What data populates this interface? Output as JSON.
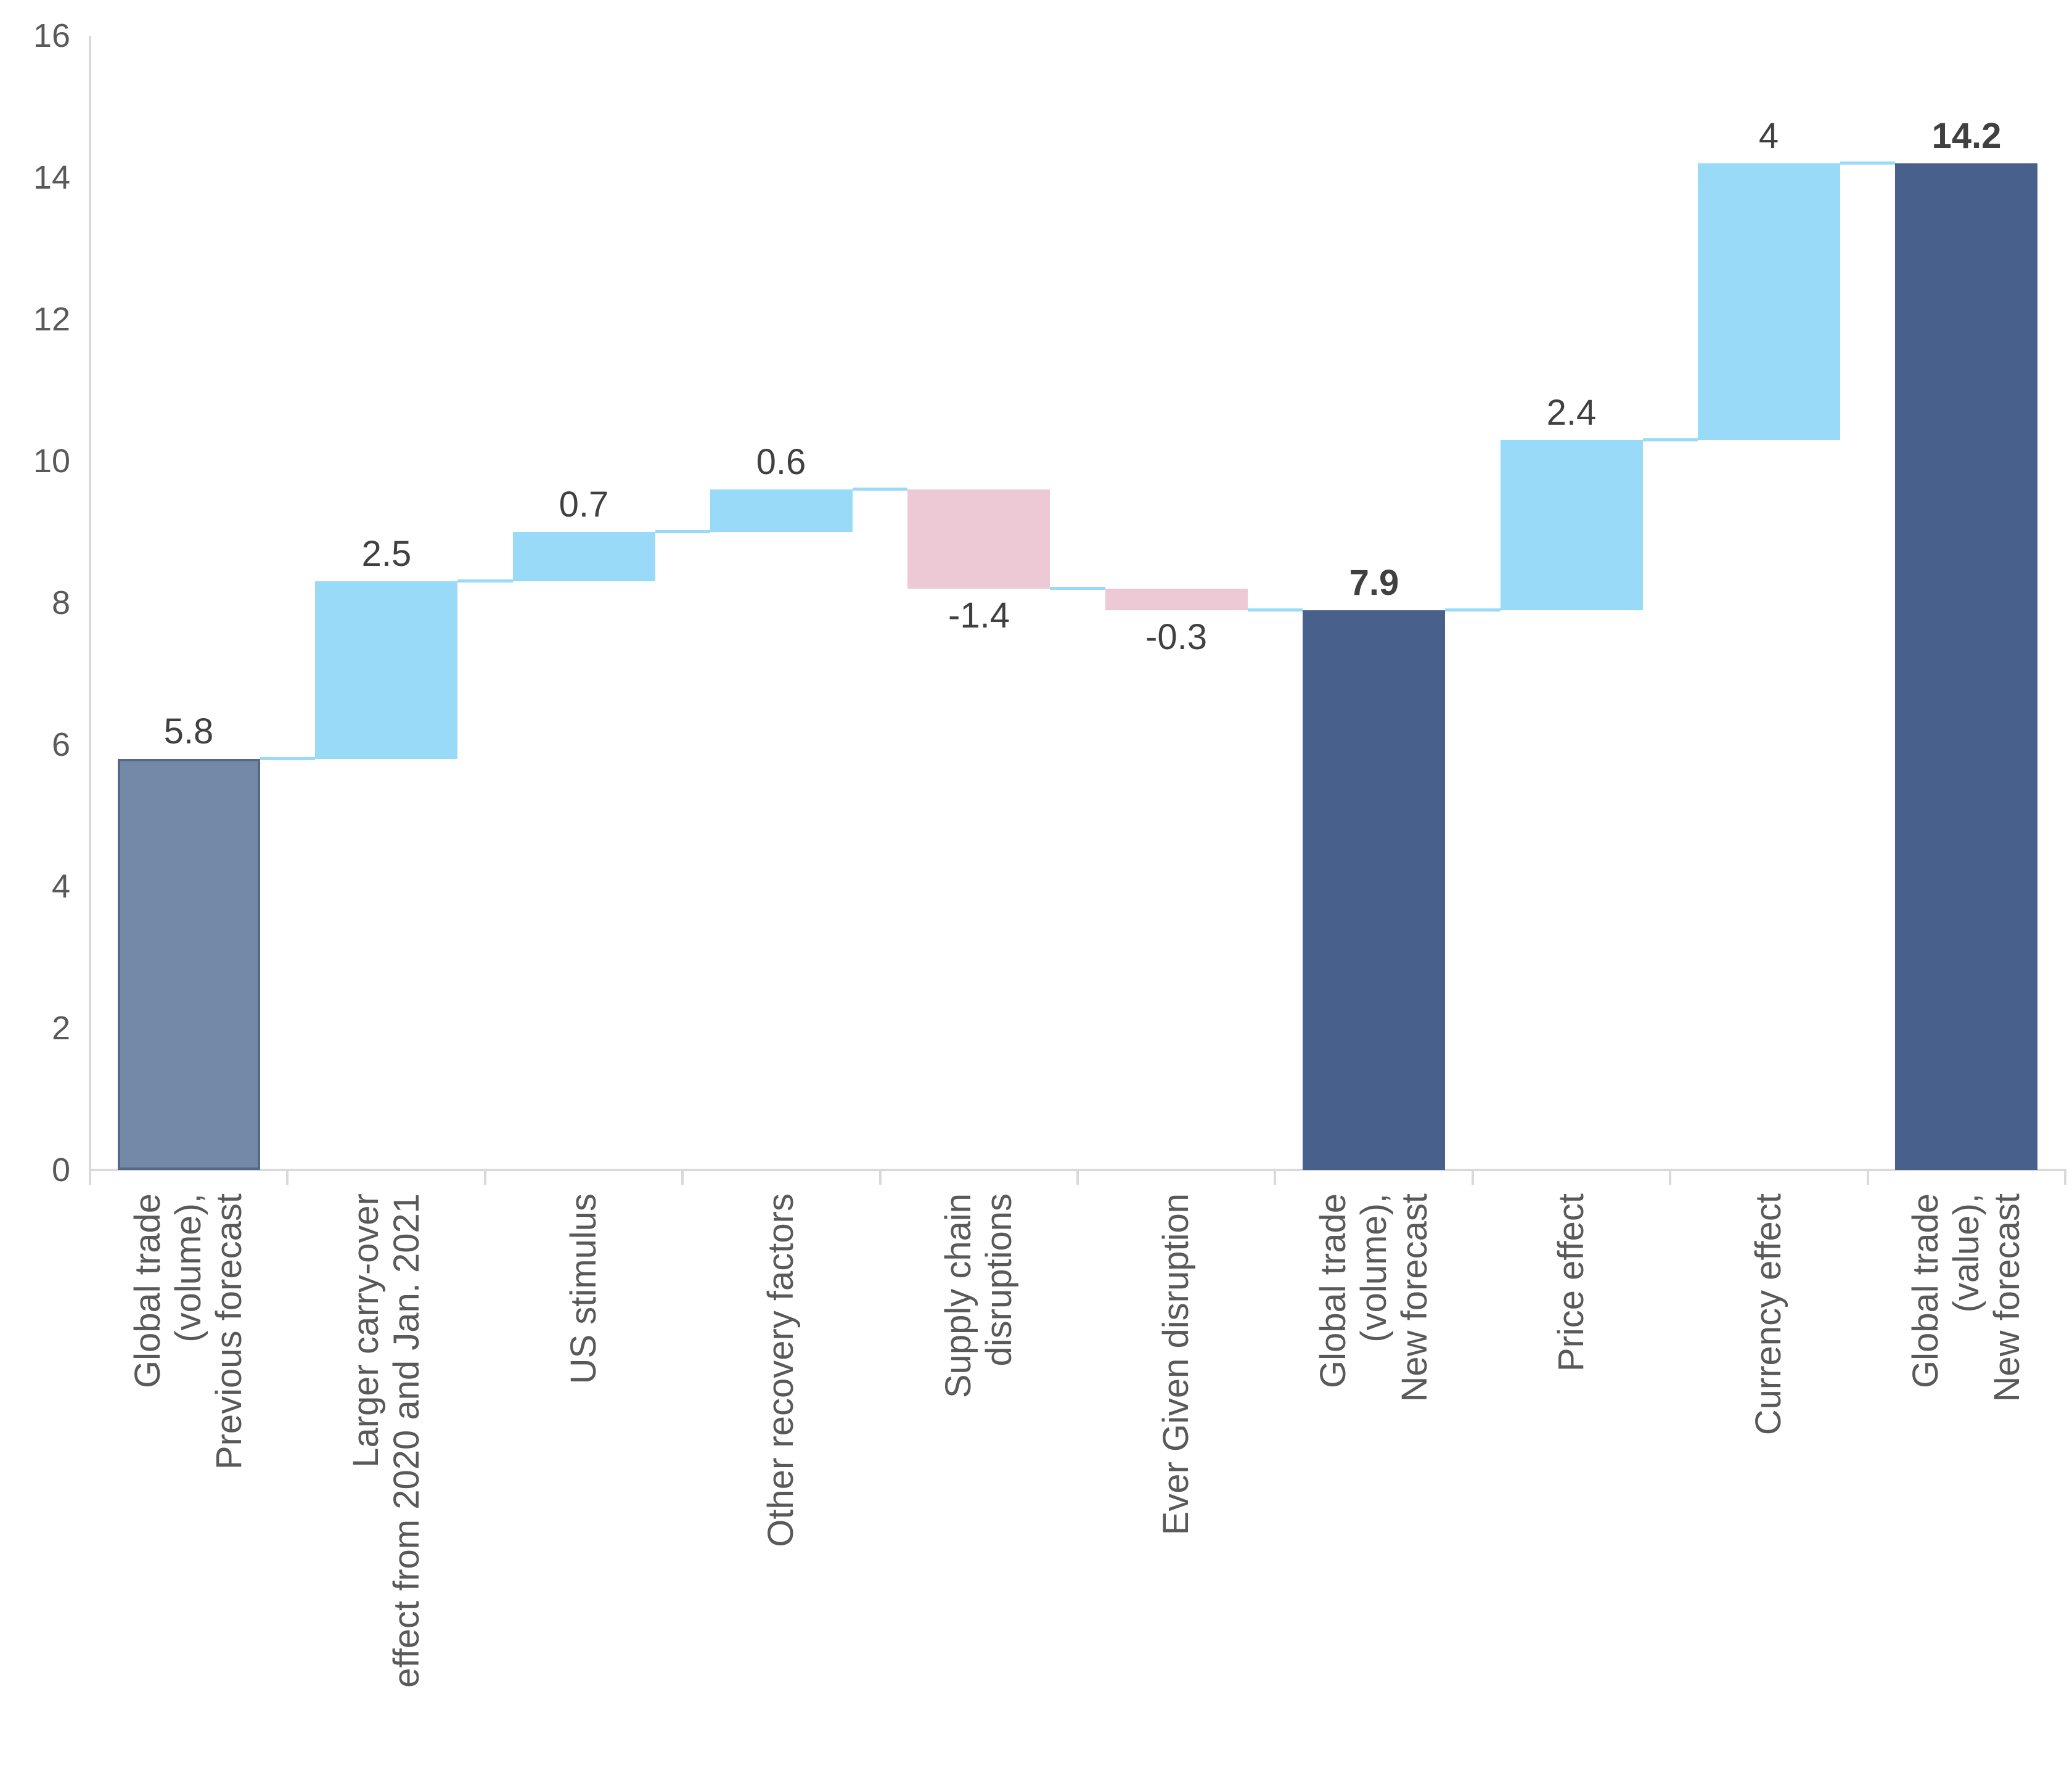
{
  "chart_data": {
    "type": "bar",
    "subtype": "waterfall",
    "title": "",
    "grid": false,
    "legend": null,
    "y_axis": {
      "min": 0,
      "max": 16,
      "step": 2,
      "tick_values": [
        0,
        2,
        4,
        6,
        8,
        10,
        12,
        14,
        16
      ],
      "tick_labels": [
        "0",
        "2",
        "4",
        "6",
        "8",
        "10",
        "12",
        "14",
        "16"
      ]
    },
    "categories": [
      "Global trade (volume), Previous forecast",
      "Larger carry-over effect from 2020 and Jan. 2021",
      "US stimulus",
      "Other recovery factors",
      "Supply chain disruptions",
      "Ever Given disruption",
      "Global trade (volume), New forecast",
      "Price effect",
      "Currency effect",
      "Global trade (value), New forecast"
    ],
    "bars": [
      {
        "id": "global-trade-volume-previous-forecast",
        "label_lines": [
          "Global trade",
          "(volume),",
          "Previous forecast"
        ],
        "value_label": "5.8",
        "start": 0,
        "end": 5.8,
        "kind": "base",
        "bold": false,
        "label_position": "above"
      },
      {
        "id": "larger-carry-over-effect",
        "label_lines": [
          "Larger carry-over",
          "effect from 2020 and Jan. 2021"
        ],
        "value_label": "2.5",
        "start": 5.8,
        "end": 8.3,
        "kind": "increase",
        "bold": false,
        "label_position": "above"
      },
      {
        "id": "us-stimulus",
        "label_lines": [
          "US stimulus"
        ],
        "value_label": "0.7",
        "start": 8.3,
        "end": 9.0,
        "kind": "increase",
        "bold": false,
        "label_position": "above"
      },
      {
        "id": "other-recovery-factors",
        "label_lines": [
          "Other recovery factors"
        ],
        "value_label": "0.6",
        "start": 9.0,
        "end": 9.6,
        "kind": "increase",
        "bold": false,
        "label_position": "above"
      },
      {
        "id": "supply-chain-disruptions",
        "label_lines": [
          "Supply chain",
          "disruptions"
        ],
        "value_label": "-1.4",
        "start": 9.6,
        "end": 8.2,
        "kind": "decrease",
        "bold": false,
        "label_position": "below"
      },
      {
        "id": "ever-given-disruption",
        "label_lines": [
          "Ever Given disruption"
        ],
        "value_label": "-0.3",
        "start": 8.2,
        "end": 7.9,
        "kind": "decrease",
        "bold": false,
        "label_position": "below"
      },
      {
        "id": "global-trade-volume-new-forecast",
        "label_lines": [
          "Global trade",
          "(volume),",
          "New forecast"
        ],
        "value_label": "7.9",
        "start": 0,
        "end": 7.9,
        "kind": "total",
        "bold": true,
        "label_position": "above"
      },
      {
        "id": "price-effect",
        "label_lines": [
          "Price effect"
        ],
        "value_label": "2.4",
        "start": 7.9,
        "end": 10.3,
        "kind": "increase",
        "bold": false,
        "label_position": "above"
      },
      {
        "id": "currency-effect",
        "label_lines": [
          "Currency effect"
        ],
        "value_label": "4",
        "start": 10.3,
        "end": 14.2,
        "kind": "increase",
        "bold": false,
        "label_position": "above"
      },
      {
        "id": "global-trade-value-new-forecast",
        "label_lines": [
          "Global trade",
          "(value),",
          "New forecast"
        ],
        "value_label": "14.2",
        "start": 0,
        "end": 14.2,
        "kind": "total",
        "bold": true,
        "label_position": "above"
      }
    ],
    "colors": {
      "base_fill": "#7489A8",
      "base_border": "#54688A",
      "increase_fill": "#99DAF8",
      "decrease_fill": "#ECC9D5",
      "total_fill": "#47618C",
      "connector": "#99DAF8",
      "axis_line": "#D9D9D9",
      "tick_text": "#595959",
      "category_text": "#595959",
      "value_text": "#404040"
    }
  }
}
